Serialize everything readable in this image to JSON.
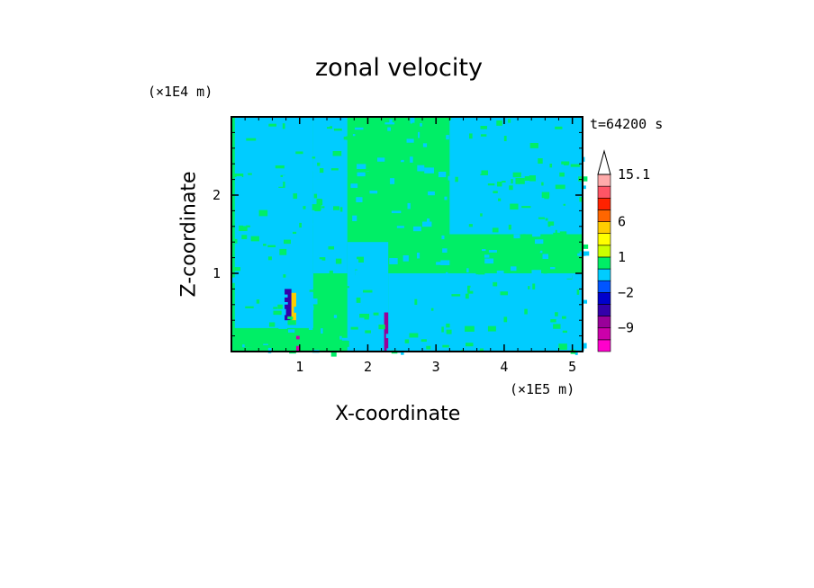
{
  "chart_data": {
    "type": "heatmap",
    "title": "zonal velocity",
    "xlabel": "X-coordinate",
    "ylabel": "Z-coordinate",
    "x_unit": "(×1E5 m)",
    "y_unit": "(×1E4 m)",
    "time_label": "t=64200 s",
    "xlim": [
      0,
      5.15
    ],
    "ylim": [
      0,
      3.0
    ],
    "x_ticks": [
      "1",
      "2",
      "3",
      "4",
      "5"
    ],
    "y_ticks": [
      "1",
      "2"
    ],
    "colorbar": {
      "labels": [
        "15.1",
        "6",
        "1",
        "-2",
        "-9"
      ],
      "levels": [
        -15,
        -12,
        -9,
        -6,
        -4,
        -2,
        -1,
        0,
        1,
        2,
        4,
        6,
        8,
        10,
        12,
        15.1
      ],
      "colors": [
        "#ff00cc",
        "#cc00aa",
        "#990099",
        "#3300aa",
        "#0000cc",
        "#0055ff",
        "#00ccff",
        "#00ee66",
        "#ccff00",
        "#ffff00",
        "#ffcc00",
        "#ff6600",
        "#ff2200",
        "#ff5566",
        "#ffaaaa"
      ]
    },
    "field_description": "mostly weak flow (-1 to 1) with stronger jets near x=0.85 and x=2.3",
    "regions": [
      {
        "x": [
          0.0,
          5.15
        ],
        "z": [
          0.0,
          3.0
        ],
        "value": 0.5
      },
      {
        "x": [
          0.05,
          1.2
        ],
        "z": [
          0.3,
          3.0
        ],
        "value": -0.5
      },
      {
        "x": [
          1.2,
          1.7
        ],
        "z": [
          1.0,
          3.0
        ],
        "value": -0.5
      },
      {
        "x": [
          1.7,
          2.3
        ],
        "z": [
          0.0,
          1.4
        ],
        "value": -0.5
      },
      {
        "x": [
          2.3,
          5.15
        ],
        "z": [
          0.0,
          1.0
        ],
        "value": -0.5
      },
      {
        "x": [
          3.2,
          5.15
        ],
        "z": [
          1.5,
          3.0
        ],
        "value": -0.5
      },
      {
        "x": [
          0.78,
          0.88
        ],
        "z": [
          0.4,
          0.8
        ],
        "value": -5
      },
      {
        "x": [
          0.88,
          0.95
        ],
        "z": [
          0.35,
          0.75
        ],
        "value": 5
      },
      {
        "x": [
          0.95,
          1.0
        ],
        "z": [
          0.0,
          0.2
        ],
        "value": -10
      },
      {
        "x": [
          2.24,
          2.3
        ],
        "z": [
          0.0,
          0.5
        ],
        "value": -8
      }
    ]
  }
}
